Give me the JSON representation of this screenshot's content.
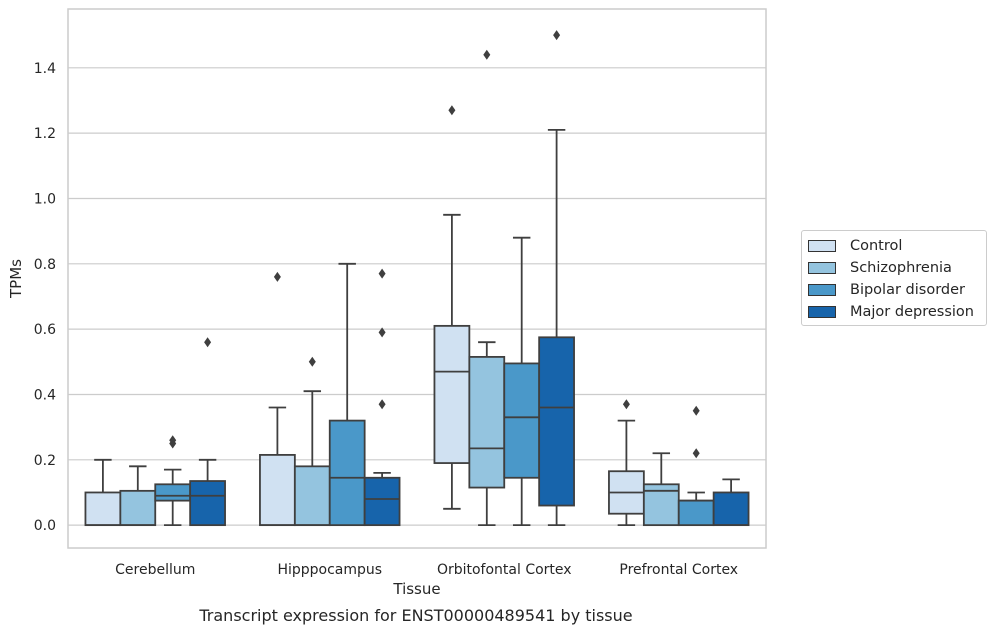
{
  "chart_data": {
    "type": "box",
    "title": "Transcript expression for ENST00000489541 by tissue",
    "xlabel": "Tissue",
    "ylabel": "TPMs",
    "ylim": [
      -0.07,
      1.58
    ],
    "yticks": [
      0.0,
      0.2,
      0.4,
      0.6,
      0.8,
      1.0,
      1.2,
      1.4
    ],
    "ytick_labels": [
      "0.0",
      "0.2",
      "0.4",
      "0.6",
      "0.8",
      "1.0",
      "1.2",
      "1.4"
    ],
    "grid": "horizontal",
    "legend_position": "right",
    "categories": [
      "Cerebellum",
      "Hipppocampus",
      "Orbitofontal Cortex",
      "Prefrontal Cortex"
    ],
    "series": [
      {
        "name": "Control",
        "color": "#d0e1f2",
        "boxes": [
          {
            "whislo": 0.0,
            "q1": 0.0,
            "med": 0.0,
            "q3": 0.1,
            "whishi": 0.2,
            "fliers": []
          },
          {
            "whislo": 0.0,
            "q1": 0.0,
            "med": 0.0,
            "q3": 0.215,
            "whishi": 0.36,
            "fliers": [
              0.76
            ]
          },
          {
            "whislo": 0.05,
            "q1": 0.19,
            "med": 0.47,
            "q3": 0.61,
            "whishi": 0.95,
            "fliers": [
              1.27
            ]
          },
          {
            "whislo": 0.0,
            "q1": 0.035,
            "med": 0.1,
            "q3": 0.165,
            "whishi": 0.32,
            "fliers": [
              0.37
            ]
          }
        ]
      },
      {
        "name": "Schizophrenia",
        "color": "#94c4df",
        "boxes": [
          {
            "whislo": 0.0,
            "q1": 0.0,
            "med": 0.0,
            "q3": 0.105,
            "whishi": 0.18,
            "fliers": []
          },
          {
            "whislo": 0.0,
            "q1": 0.0,
            "med": 0.0,
            "q3": 0.18,
            "whishi": 0.41,
            "fliers": [
              0.5
            ]
          },
          {
            "whislo": 0.0,
            "q1": 0.115,
            "med": 0.235,
            "q3": 0.515,
            "whishi": 0.56,
            "fliers": [
              1.44
            ]
          },
          {
            "whislo": 0.0,
            "q1": 0.0,
            "med": 0.105,
            "q3": 0.125,
            "whishi": 0.22,
            "fliers": []
          }
        ]
      },
      {
        "name": "Bipolar disorder",
        "color": "#4a98c9",
        "boxes": [
          {
            "whislo": 0.0,
            "q1": 0.075,
            "med": 0.09,
            "q3": 0.125,
            "whishi": 0.17,
            "fliers": [
              0.25,
              0.26
            ]
          },
          {
            "whislo": 0.0,
            "q1": 0.0,
            "med": 0.145,
            "q3": 0.32,
            "whishi": 0.8,
            "fliers": []
          },
          {
            "whislo": 0.0,
            "q1": 0.145,
            "med": 0.33,
            "q3": 0.495,
            "whishi": 0.88,
            "fliers": []
          },
          {
            "whislo": 0.0,
            "q1": 0.0,
            "med": 0.075,
            "q3": 0.075,
            "whishi": 0.1,
            "fliers": [
              0.22,
              0.35
            ]
          }
        ]
      },
      {
        "name": "Major depression",
        "color": "#1764ab",
        "boxes": [
          {
            "whislo": 0.0,
            "q1": 0.0,
            "med": 0.09,
            "q3": 0.135,
            "whishi": 0.2,
            "fliers": [
              0.56
            ]
          },
          {
            "whislo": 0.0,
            "q1": 0.0,
            "med": 0.08,
            "q3": 0.145,
            "whishi": 0.16,
            "fliers": [
              0.37,
              0.59,
              0.77
            ]
          },
          {
            "whislo": 0.0,
            "q1": 0.06,
            "med": 0.36,
            "q3": 0.575,
            "whishi": 1.21,
            "fliers": [
              1.5
            ]
          },
          {
            "whislo": 0.0,
            "q1": 0.0,
            "med": 0.0,
            "q3": 0.1,
            "whishi": 0.14,
            "fliers": []
          }
        ]
      }
    ]
  }
}
